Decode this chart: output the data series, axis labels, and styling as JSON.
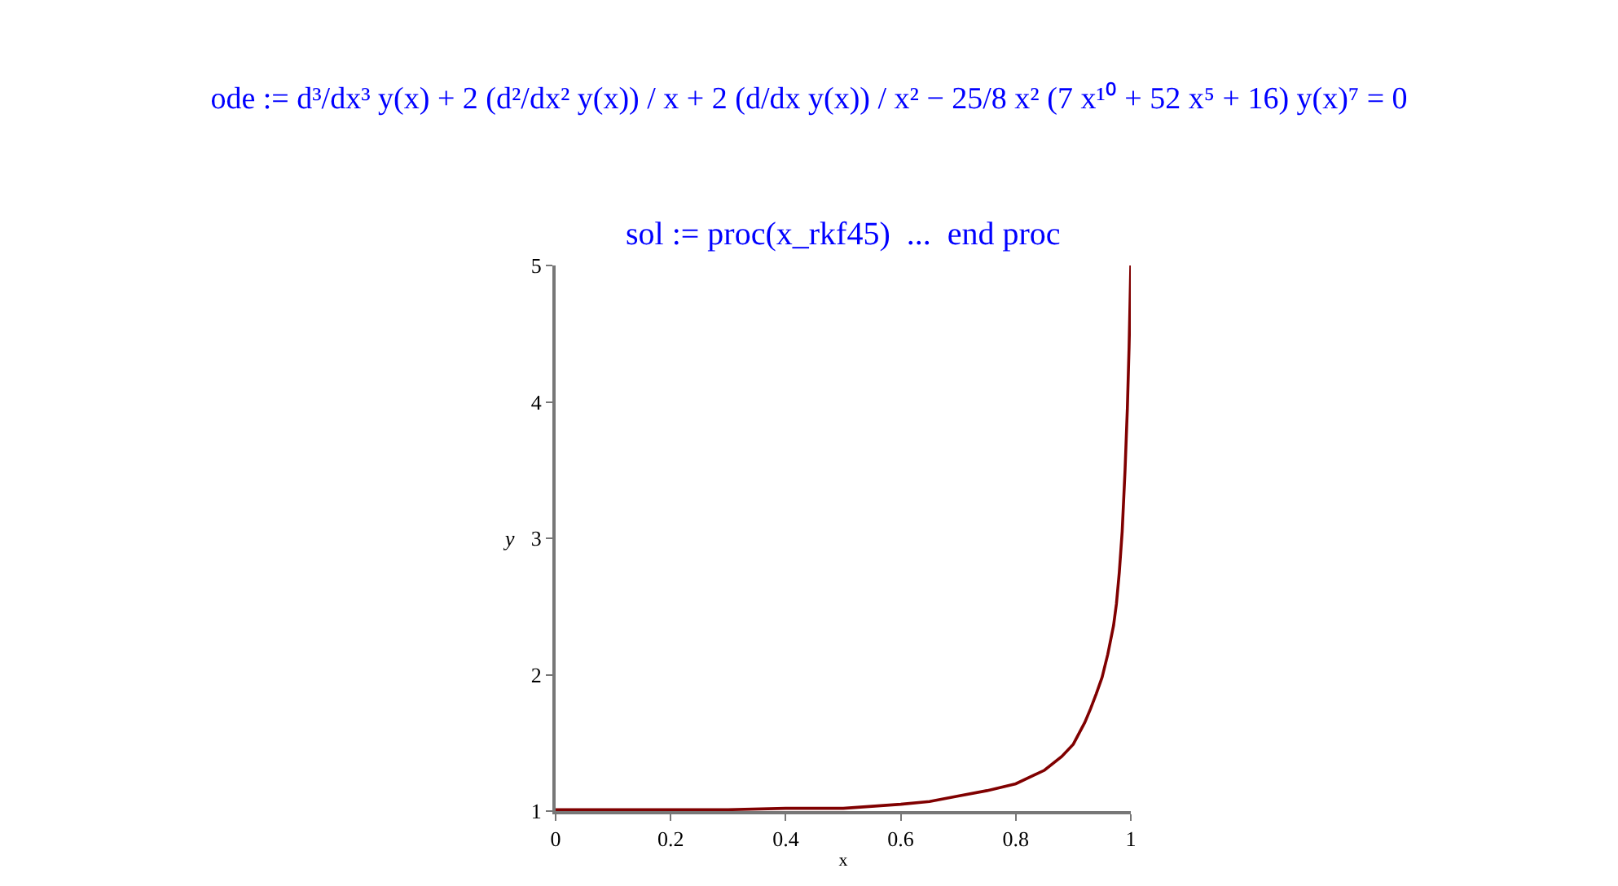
{
  "chart_data": {
    "type": "line",
    "title": "ode := d³/dx³ y(x) + 2 (d²/dx² y(x)) / x + 2 (d/dx y(x)) / x² − 25/8 x² (7 x¹⁰ + 52 x⁵ + 16) y(x)⁷ = 0",
    "subtitle": "sol := proc(x_rkf45)  ...  end proc",
    "xlabel": "x",
    "ylabel": "y",
    "x": [
      0,
      0.1,
      0.2,
      0.3,
      0.4,
      0.5,
      0.6,
      0.65,
      0.7,
      0.75,
      0.8,
      0.85,
      0.88,
      0.9,
      0.92,
      0.93,
      0.94,
      0.95,
      0.96,
      0.97,
      0.975,
      0.98,
      0.985,
      0.99,
      0.994,
      0.997,
      1.0
    ],
    "series": [
      {
        "color": "#800000",
        "values": [
          1.01,
          1.01,
          1.01,
          1.01,
          1.02,
          1.02,
          1.05,
          1.07,
          1.11,
          1.15,
          1.2,
          1.3,
          1.4,
          1.49,
          1.65,
          1.75,
          1.86,
          1.98,
          2.15,
          2.36,
          2.52,
          2.75,
          3.05,
          3.5,
          3.95,
          4.4,
          5.0
        ]
      }
    ],
    "xlim": [
      0,
      1
    ],
    "ylim": [
      1,
      5
    ],
    "xticks": [
      0,
      0.2,
      0.4,
      0.6,
      0.8,
      1
    ],
    "yticks": [
      1,
      2,
      3,
      4,
      5
    ],
    "grid": false,
    "marker": "none",
    "line_style": "solid"
  }
}
